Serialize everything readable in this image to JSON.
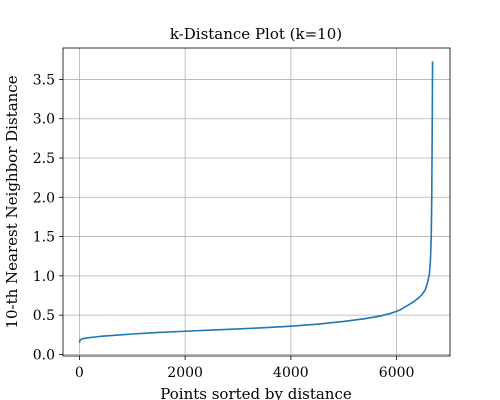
{
  "chart_data": {
    "type": "line",
    "title": "k-Distance Plot (k=10)",
    "xlabel": "Points sorted by distance",
    "ylabel": "10-th Nearest Neighbor Distance",
    "xlim": [
      -310,
      7010
    ],
    "ylim": [
      -0.02,
      3.9
    ],
    "xticks": [
      0,
      2000,
      4000,
      6000
    ],
    "xtick_labels": [
      "0",
      "2000",
      "4000",
      "6000"
    ],
    "yticks": [
      0.0,
      0.5,
      1.0,
      1.5,
      2.0,
      2.5,
      3.0,
      3.5
    ],
    "ytick_labels": [
      "0.0",
      "0.5",
      "1.0",
      "1.5",
      "2.0",
      "2.5",
      "3.0",
      "3.5"
    ],
    "grid": true,
    "legend": "none",
    "series": [
      {
        "color": "#1f77b4",
        "x": [
          0,
          10,
          30,
          60,
          100,
          200,
          400,
          700,
          1000,
          1500,
          2000,
          2500,
          3000,
          3500,
          4000,
          4500,
          5000,
          5400,
          5700,
          5900,
          6050,
          6200,
          6300,
          6400,
          6480,
          6540,
          6580,
          6620,
          6640,
          6655,
          6665,
          6672,
          6677,
          6680
        ],
        "y": [
          0.15,
          0.18,
          0.19,
          0.2,
          0.205,
          0.215,
          0.23,
          0.245,
          0.26,
          0.28,
          0.295,
          0.31,
          0.325,
          0.34,
          0.36,
          0.385,
          0.42,
          0.455,
          0.49,
          0.525,
          0.56,
          0.62,
          0.66,
          0.71,
          0.76,
          0.82,
          0.9,
          1.02,
          1.2,
          1.5,
          2.0,
          2.7,
          3.3,
          3.73
        ]
      }
    ]
  }
}
